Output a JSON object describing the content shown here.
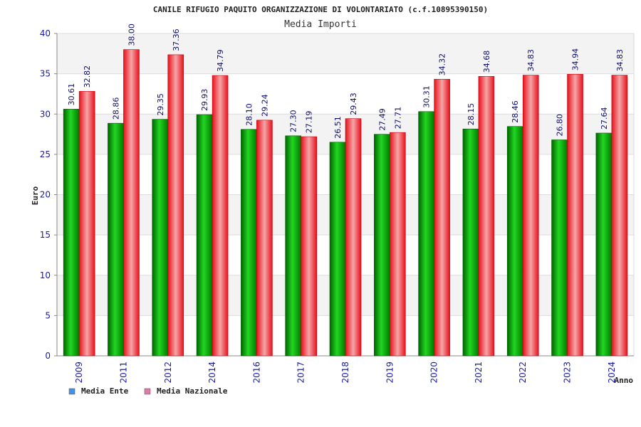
{
  "chart_data": {
    "type": "bar",
    "title": "CANILE RIFUGIO PAQUITO ORGANIZZAZIONE DI VOLONTARIATO (c.f.10895390150)",
    "subtitle": "Media Importi",
    "xlabel": "Anno",
    "ylabel": "Euro",
    "ylim": [
      0,
      40
    ],
    "yticks": [
      0,
      5,
      10,
      15,
      20,
      25,
      30,
      35,
      40
    ],
    "categories": [
      "2009",
      "2011",
      "2012",
      "2014",
      "2016",
      "2017",
      "2018",
      "2019",
      "2020",
      "2021",
      "2022",
      "2023",
      "2024"
    ],
    "series": [
      {
        "name": "Media Ente",
        "color": "#00a000",
        "legend_color": "#4a90e2",
        "values": [
          30.61,
          28.86,
          29.35,
          29.93,
          28.1,
          27.3,
          26.51,
          27.49,
          30.31,
          28.15,
          28.46,
          26.8,
          27.64
        ],
        "labels": [
          "30.61",
          "28.86",
          "29.35",
          "29.93",
          "28.10",
          "27.30",
          "26.51",
          "27.49",
          "30.31",
          "28.15",
          "28.46",
          "26.80",
          "27.64"
        ]
      },
      {
        "name": "Media Nazionale",
        "color": "#e8202a",
        "legend_color": "#e07aa8",
        "values": [
          32.82,
          38.0,
          37.36,
          34.79,
          29.24,
          27.19,
          29.43,
          27.71,
          34.32,
          34.68,
          34.83,
          34.94,
          34.83
        ],
        "labels": [
          "32.82",
          "38.00",
          "37.36",
          "34.79",
          "29.24",
          "27.19",
          "29.43",
          "27.71",
          "34.32",
          "34.68",
          "34.83",
          "34.94",
          "34.83"
        ]
      }
    ],
    "legend_position": "bottom-left",
    "grid": true
  }
}
